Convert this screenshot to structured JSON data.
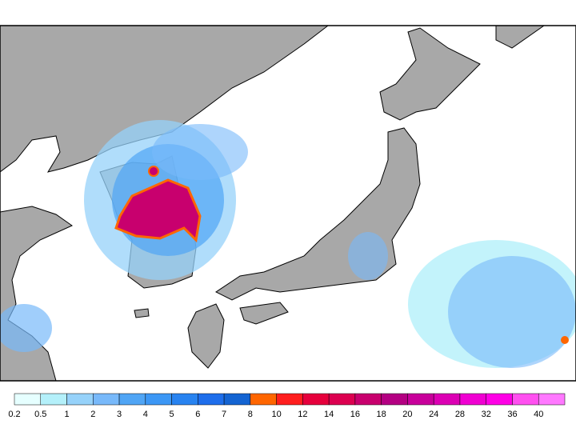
{
  "colorbar": {
    "levels": [
      0.2,
      0.5,
      1,
      2,
      3,
      4,
      5,
      6,
      7,
      8,
      10,
      12,
      14,
      16,
      18,
      20,
      24,
      28,
      32,
      36,
      40
    ],
    "colors": [
      "#e6ffff",
      "#b4f0fa",
      "#96d2fa",
      "#78b9fa",
      "#50a5f5",
      "#3c97f5",
      "#2883f0",
      "#1e6eeb",
      "#1464d2",
      "#ff6600",
      "#ff1e1e",
      "#e6003c",
      "#dc0050",
      "#c8006e",
      "#b40082",
      "#c8009b",
      "#dc00b4",
      "#f000d2",
      "#ff00e6",
      "#ff50f0",
      "#ff78ff"
    ]
  }
}
